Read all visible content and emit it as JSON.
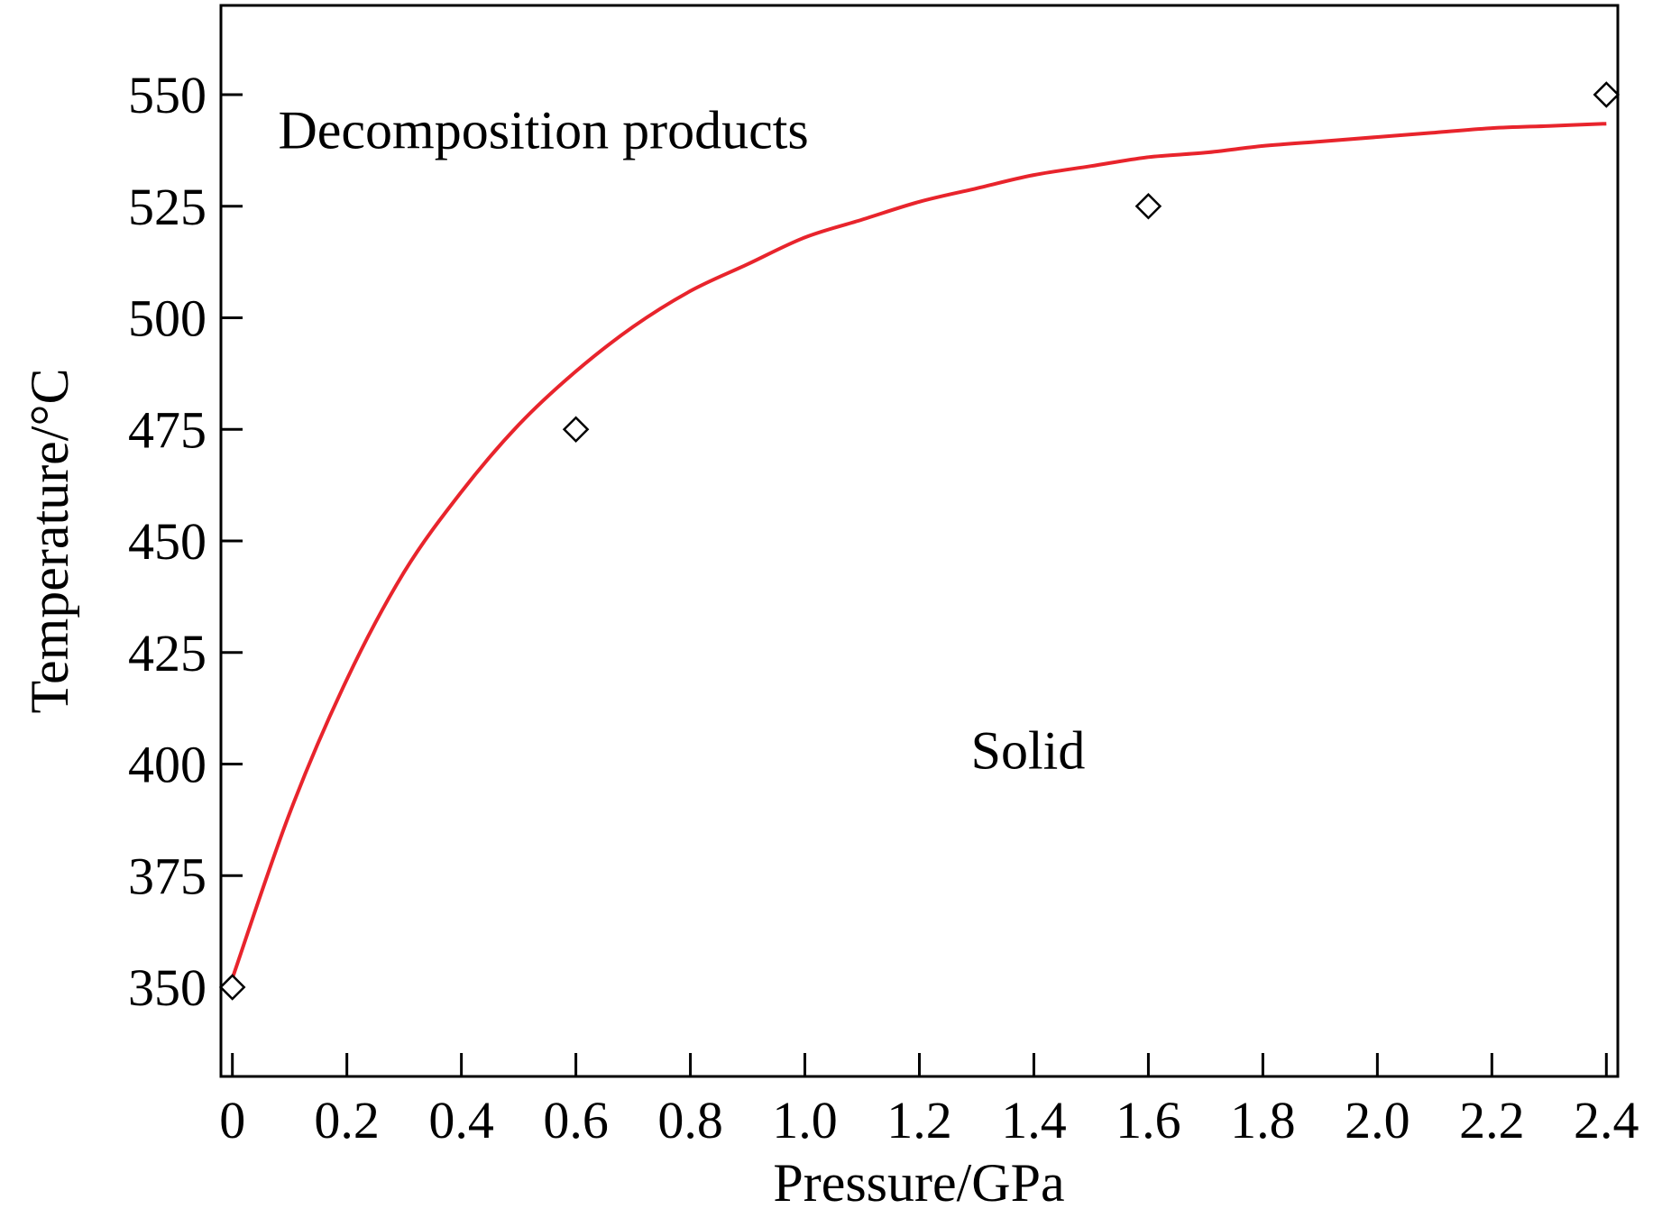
{
  "chart_data": {
    "type": "scatter",
    "title": "",
    "xlabel": "Pressure/GPa",
    "ylabel": "Temperature/°C",
    "xlim": [
      -0.02,
      2.42
    ],
    "ylim": [
      330,
      570
    ],
    "x_ticks": [
      0,
      0.2,
      0.4,
      0.6,
      0.8,
      1.0,
      1.2,
      1.4,
      1.6,
      1.8,
      2.0,
      2.2,
      2.4
    ],
    "x_tick_labels": [
      "0",
      "0.2",
      "0.4",
      "0.6",
      "0.8",
      "1.0",
      "1.2",
      "1.4",
      "1.6",
      "1.8",
      "2.0",
      "2.2",
      "2.4"
    ],
    "y_ticks": [
      350,
      375,
      400,
      425,
      450,
      475,
      500,
      525,
      550
    ],
    "y_tick_labels": [
      "350",
      "375",
      "400",
      "425",
      "450",
      "475",
      "500",
      "525",
      "550"
    ],
    "grid": false,
    "series": [
      {
        "marker": "diamond-open",
        "color": "#000000",
        "x": [
          0,
          0.6,
          1.6,
          2.4
        ],
        "y": [
          350,
          475,
          525,
          550
        ]
      },
      {
        "type": "line",
        "color": "#e8242c",
        "x": [
          0,
          0.1,
          0.2,
          0.3,
          0.4,
          0.5,
          0.6,
          0.7,
          0.8,
          0.9,
          1.0,
          1.1,
          1.2,
          1.3,
          1.4,
          1.5,
          1.6,
          1.7,
          1.8,
          1.9,
          2.0,
          2.1,
          2.2,
          2.3,
          2.4
        ],
        "y": [
          352,
          389,
          419,
          443,
          461,
          476,
          488,
          498,
          506,
          512,
          518,
          522,
          526,
          529,
          532,
          534,
          536,
          537,
          538.5,
          539.5,
          540.5,
          541.5,
          542.5,
          543,
          543.5
        ]
      }
    ],
    "annotations": [
      {
        "text": "Decomposition products",
        "x": 0.08,
        "y": 538
      },
      {
        "text": "Solid",
        "x": 1.29,
        "y": 399
      }
    ]
  }
}
